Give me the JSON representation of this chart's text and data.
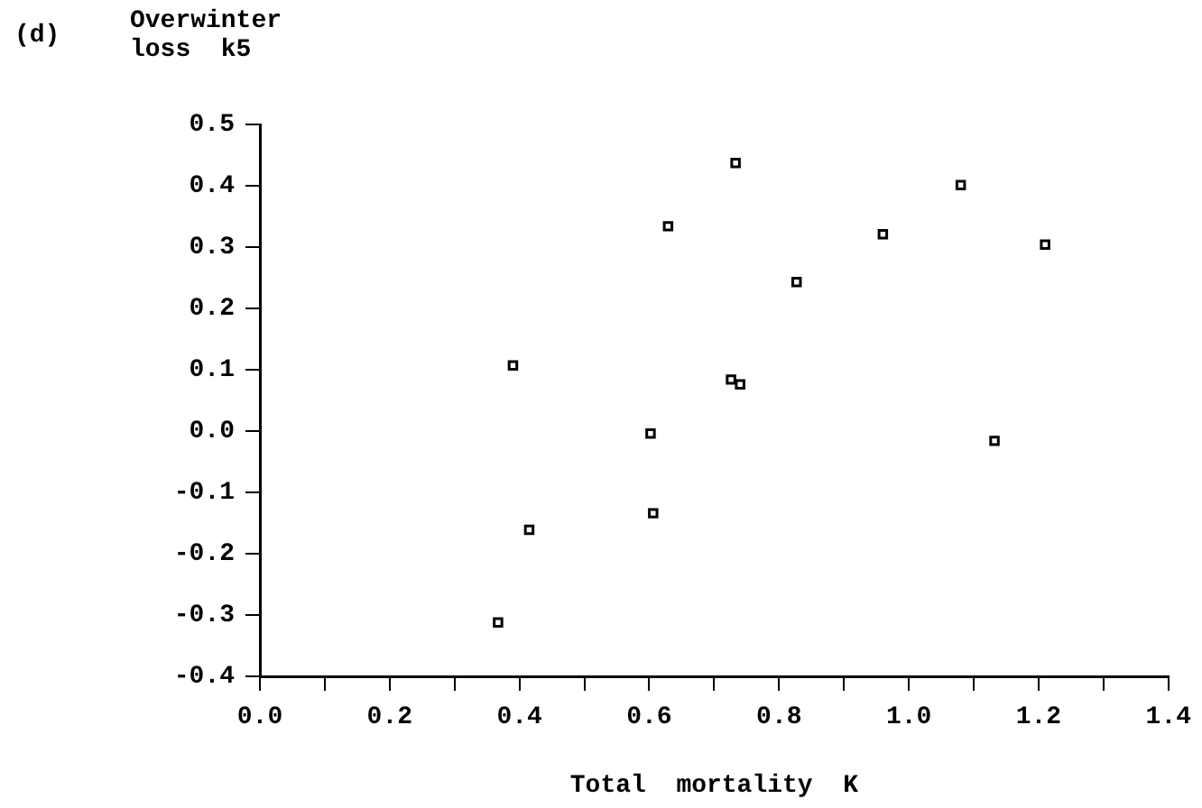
{
  "chart_data": {
    "type": "scatter",
    "xlabel": "Total  mortality  K",
    "ylabel": "Overwinter loss  k5",
    "annotations": [
      "(d)"
    ],
    "x": [
      0.39,
      0.415,
      0.367,
      0.733,
      0.629,
      1.08,
      0.96,
      1.21,
      0.827,
      0.726,
      0.74,
      0.602,
      1.132,
      0.606
    ],
    "series": [
      {
        "color": "#000000",
        "values": [
          0.107,
          -0.161,
          -0.312,
          0.437,
          0.334,
          0.401,
          0.321,
          0.304,
          0.243,
          0.084,
          0.076,
          -0.004,
          -0.016,
          -0.134
        ]
      }
    ],
    "marker": "square",
    "grid": false,
    "legend": false,
    "xlim": [
      0,
      1.4
    ],
    "ylim": [
      -0.4,
      0.5
    ],
    "xticks": [
      {
        "value": 0,
        "label": "0.0"
      },
      {
        "value": 0.1,
        "label": null
      },
      {
        "value": 0.2,
        "label": "0.2"
      },
      {
        "value": 0.3,
        "label": null
      },
      {
        "value": 0.4,
        "label": "0.4"
      },
      {
        "value": 0.5,
        "label": null
      },
      {
        "value": 0.6,
        "label": "0.6"
      },
      {
        "value": 0.7,
        "label": null
      },
      {
        "value": 0.8,
        "label": "0.8"
      },
      {
        "value": 0.9,
        "label": null
      },
      {
        "value": 1.0,
        "label": "1.0"
      },
      {
        "value": 1.1,
        "label": null
      },
      {
        "value": 1.2,
        "label": "1.2"
      },
      {
        "value": 1.3,
        "label": null
      },
      {
        "value": 1.4,
        "label": "1.4"
      }
    ],
    "yticks": [
      {
        "value": -0.4,
        "label": "-0.4"
      },
      {
        "value": -0.3,
        "label": "-0.3"
      },
      {
        "value": -0.2,
        "label": "-0.2"
      },
      {
        "value": -0.1,
        "label": "-0.1"
      },
      {
        "value": 0,
        "label": "0.0"
      },
      {
        "value": 0.1,
        "label": "0.1"
      },
      {
        "value": 0.2,
        "label": "0.2"
      },
      {
        "value": 0.3,
        "label": "0.3"
      },
      {
        "value": 0.4,
        "label": "0.4"
      },
      {
        "value": 0.5,
        "label": "0.5"
      }
    ]
  }
}
